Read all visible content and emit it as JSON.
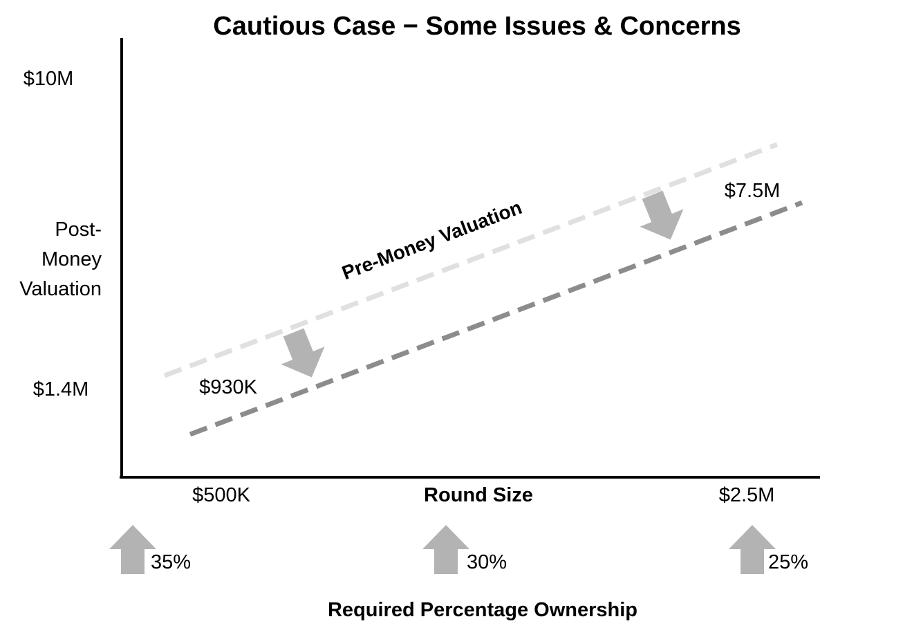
{
  "chart_data": {
    "type": "line",
    "title": "Cautious Case − Some Issues & Concerns",
    "xlabel": "Round Size",
    "ylabel": "Post- Money Valuation",
    "ylabel_lines": [
      "Post-",
      "Money",
      "Valuation"
    ],
    "x_ticks": [
      "$500K",
      "$2.5M"
    ],
    "y_ticks": [
      "$10M",
      "$1.4M"
    ],
    "grid": false,
    "series": [
      {
        "name": "Pre-Money Valuation",
        "color": "#e0e0e0",
        "style": "dashed",
        "points": [
          {
            "x": 0.5,
            "y": 1.4
          },
          {
            "x": 2.5,
            "y": 8.4
          }
        ]
      },
      {
        "name": "",
        "color": "#8c8c8c",
        "style": "dashed",
        "points": [
          {
            "x": 0.5,
            "y": 0.93
          },
          {
            "x": 2.5,
            "y": 7.5
          }
        ]
      }
    ],
    "point_labels": [
      "$930K",
      "$7.5M"
    ],
    "arrow_color": "#b3b3b3"
  },
  "ownership": {
    "label": "Required Percentage Ownership",
    "items": [
      {
        "value": "35%"
      },
      {
        "value": "30%"
      },
      {
        "value": "25%"
      }
    ]
  }
}
